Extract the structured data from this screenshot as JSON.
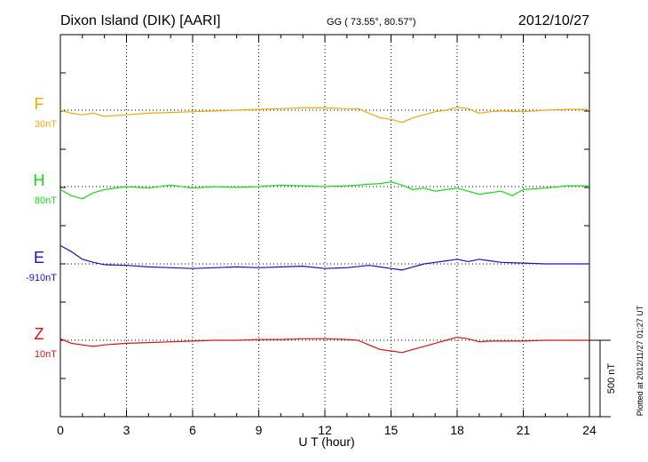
{
  "header": {
    "station": "Dixon Island (DIK)  [AARI]",
    "coords": "GG ( 73.55°,  80.57°)",
    "date": "2012/10/27"
  },
  "footer": {
    "plotted_note": "Plotted at 2012/11/27 01:27 UT"
  },
  "chart_data": {
    "type": "line",
    "xlabel": "U T (hour)",
    "ylabel": "",
    "xlim": [
      0,
      24
    ],
    "x_ticks": [
      "0",
      "3",
      "6",
      "9",
      "12",
      "15",
      "18",
      "21",
      "24"
    ],
    "grid": true,
    "scale_bar": {
      "value_nT": 500,
      "label": "500 nT"
    },
    "series": [
      {
        "name": "F",
        "baseline_label": "30nT",
        "color": "#f5a800",
        "offset_nT": 0,
        "x": [
          0,
          0.5,
          1,
          1.5,
          2,
          3,
          4,
          5,
          6,
          7,
          8,
          9,
          10,
          11,
          12,
          13,
          13.5,
          14,
          14.5,
          15,
          15.5,
          16,
          16.5,
          17,
          17.5,
          18,
          18.5,
          19,
          19.5,
          20,
          21,
          22,
          23,
          24
        ],
        "y": [
          0,
          -20,
          -30,
          -20,
          -40,
          -30,
          -20,
          -15,
          -10,
          -5,
          0,
          5,
          10,
          15,
          15,
          10,
          10,
          -20,
          -50,
          -60,
          -80,
          -50,
          -30,
          -10,
          0,
          20,
          10,
          -20,
          -10,
          -5,
          -10,
          0,
          5,
          5
        ]
      },
      {
        "name": "H",
        "baseline_label": "80nT",
        "color": "#10e010",
        "offset_nT": 0,
        "x": [
          0,
          0.5,
          1,
          1.5,
          2,
          3,
          4,
          5,
          6,
          7,
          8,
          9,
          10,
          11,
          12,
          13,
          13.5,
          14,
          14.5,
          15,
          15.5,
          16,
          16.5,
          17,
          17.5,
          18,
          18.5,
          19,
          19.5,
          20,
          20.5,
          21,
          22,
          23,
          24
        ],
        "y": [
          -20,
          -60,
          -80,
          -40,
          -20,
          0,
          -10,
          10,
          -10,
          0,
          -5,
          0,
          10,
          5,
          0,
          5,
          10,
          15,
          20,
          30,
          10,
          -20,
          -10,
          -30,
          -20,
          -10,
          -30,
          -50,
          -40,
          -30,
          -60,
          -20,
          -10,
          5,
          5
        ]
      },
      {
        "name": "E",
        "baseline_label": "-910nT",
        "color": "#1010d8",
        "offset_nT": 0,
        "x": [
          0,
          0.5,
          1,
          1.5,
          2,
          3,
          4,
          5,
          6,
          7,
          8,
          9,
          10,
          11,
          12,
          13,
          14,
          14.5,
          15,
          15.5,
          16,
          16.5,
          17,
          17.5,
          18,
          18.5,
          19,
          19.5,
          20,
          21,
          22,
          23,
          24
        ],
        "y": [
          120,
          80,
          30,
          10,
          -5,
          -10,
          -20,
          -25,
          -30,
          -25,
          -20,
          -25,
          -20,
          -15,
          -30,
          -25,
          -10,
          -20,
          -30,
          -40,
          -20,
          0,
          10,
          20,
          30,
          15,
          30,
          20,
          10,
          5,
          0,
          0,
          0
        ]
      },
      {
        "name": "Z",
        "baseline_label": "10nT",
        "color": "#e01010",
        "offset_nT": 0,
        "x": [
          0,
          0.5,
          1,
          1.5,
          2,
          3,
          4,
          5,
          6,
          7,
          8,
          9,
          10,
          11,
          12,
          13,
          13.5,
          14,
          14.5,
          15,
          15.5,
          16,
          16.5,
          17,
          17.5,
          18,
          18.5,
          19,
          19.5,
          20,
          21,
          22,
          23,
          24
        ],
        "y": [
          10,
          -20,
          -30,
          -40,
          -30,
          -20,
          -15,
          -10,
          -5,
          0,
          0,
          5,
          5,
          10,
          10,
          5,
          0,
          -30,
          -60,
          -70,
          -80,
          -60,
          -40,
          -20,
          0,
          20,
          10,
          -10,
          -5,
          -5,
          -5,
          0,
          0,
          0
        ]
      }
    ]
  },
  "style": {
    "axis_color": "#000000",
    "grid_color": "#000000",
    "background": "#ffffff"
  }
}
